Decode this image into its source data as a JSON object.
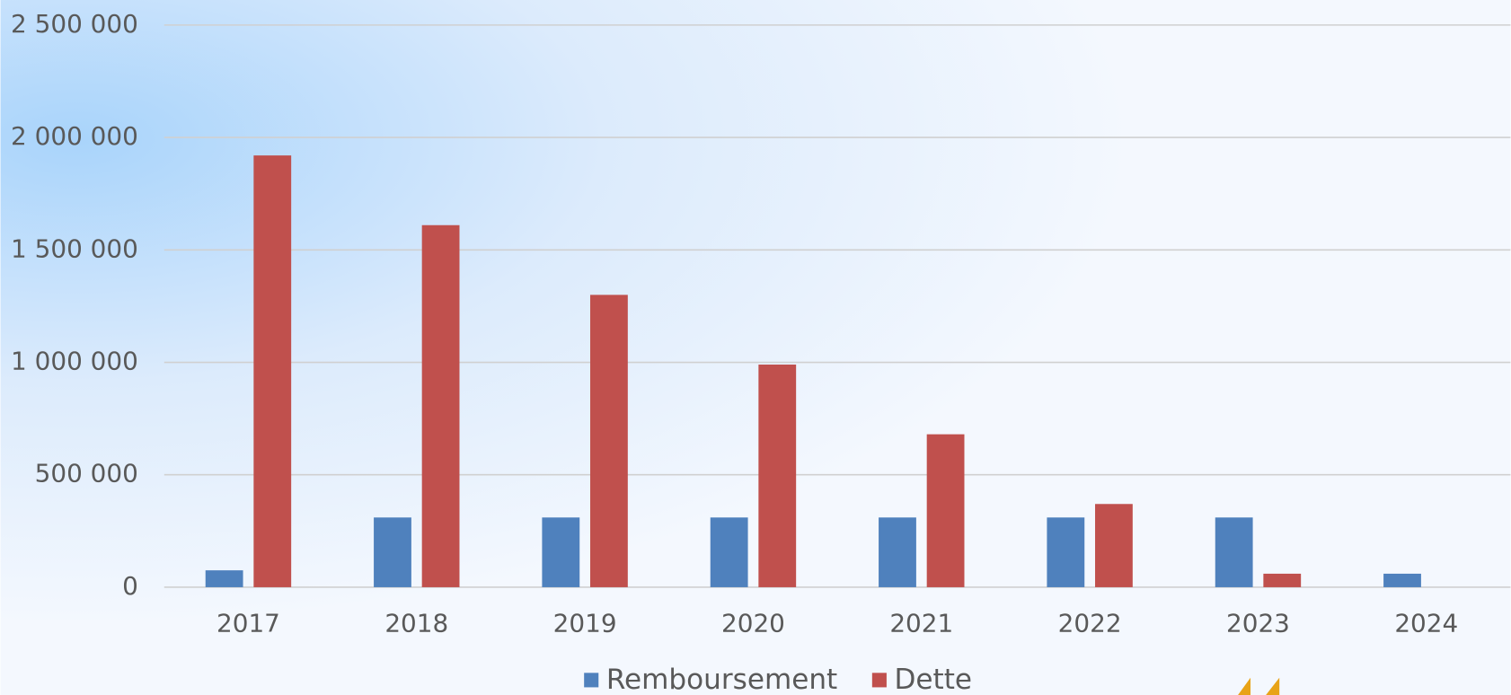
{
  "chart_data": {
    "type": "bar",
    "categories": [
      "2017",
      "2018",
      "2019",
      "2020",
      "2021",
      "2022",
      "2023",
      "2024"
    ],
    "series": [
      {
        "name": "Remboursement",
        "color": "#4f81bd",
        "values": [
          75000,
          310000,
          310000,
          310000,
          310000,
          310000,
          310000,
          60000
        ]
      },
      {
        "name": "Dette",
        "color": "#c0504d",
        "values": [
          1920000,
          1610000,
          1300000,
          990000,
          680000,
          370000,
          60000,
          null
        ]
      }
    ],
    "ylim": [
      0,
      2500000
    ],
    "yticks": [
      0,
      {
        "value": 500000,
        "label": "500 000"
      },
      {
        "value": 1000000,
        "label": "1 000 000"
      },
      {
        "value": 1500000,
        "label": "1 500 000"
      },
      {
        "value": 2000000,
        "label": "2 000 000"
      },
      {
        "value": 2500000,
        "label": "2 500 000"
      }
    ],
    "grid": true,
    "legend": "bottom"
  }
}
